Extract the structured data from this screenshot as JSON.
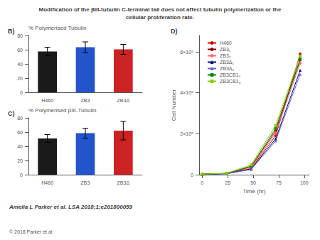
{
  "title": "Modification of the βIII-tubulin C-terminal tail does not affect tubulin polymerization or the\ncellular proliferation rate.",
  "annotations": [
    "Amelia L Parker et al. LSA 2018;1:e201800059",
    "© 2018 Parker et al."
  ],
  "chart_data": [
    {
      "type": "bar",
      "title": "B)",
      "categories": [
        "H460",
        "ZB3",
        "ZB3Δ"
      ],
      "values": [
        57.5,
        63.5,
        60.5
      ],
      "errors": [
        6.0,
        7.5,
        7.0
      ],
      "colors": [
        "#1a1a1a",
        "#2255CC",
        "#CC2222"
      ],
      "ylabel": "% Polymerised Tubulin",
      "ylim": [
        0,
        80
      ],
      "yticks": [
        0,
        20,
        40,
        60,
        80
      ],
      "grid": false
    },
    {
      "type": "bar",
      "title": "C)",
      "categories": [
        "H460",
        "ZB3",
        "ZB3Δ"
      ],
      "values": [
        51.0,
        58.5,
        62.0
      ],
      "errors": [
        5.5,
        7.0,
        13.0
      ],
      "colors": [
        "#1a1a1a",
        "#2255CC",
        "#CC2222"
      ],
      "ylabel": "% Polymerised βIII-Tubulin",
      "ylim": [
        0,
        80
      ],
      "yticks": [
        0,
        20,
        40,
        60,
        80
      ],
      "grid": false
    },
    {
      "type": "line",
      "title": "D)",
      "x": [
        0,
        24,
        48,
        72,
        96
      ],
      "series": [
        {
          "name": "H460",
          "color": "#CC0000",
          "marker": "circle",
          "values": [
            2000,
            5000,
            30000,
            190000,
            590000
          ]
        },
        {
          "name": "ZB3₁",
          "color": "#8B0000",
          "marker": "circle",
          "values": [
            2000,
            6000,
            38000,
            215000,
            560000
          ]
        },
        {
          "name": "ZB3₂",
          "color": "#FF6666",
          "marker": "circle",
          "values": [
            2000,
            5500,
            32000,
            205000,
            545000
          ]
        },
        {
          "name": "ZB3Δ₁",
          "color": "#000080",
          "marker": "triangle",
          "values": [
            2000,
            5000,
            28000,
            175000,
            510000
          ]
        },
        {
          "name": "ZB3Δ₂",
          "color": "#6666CC",
          "marker": "triangle",
          "values": [
            2000,
            4500,
            25000,
            165000,
            490000
          ]
        },
        {
          "name": "ZB3CB1₂",
          "color": "#008800",
          "marker": "square",
          "values": [
            2000,
            6500,
            42000,
            225000,
            565000
          ]
        },
        {
          "name": "ZB3CB1₃",
          "color": "#88CC00",
          "marker": "square",
          "values": [
            2000,
            7000,
            48000,
            240000,
            580000
          ]
        }
      ],
      "xlabel": "Time (hr)",
      "ylabel": "Cell Number",
      "xlim": [
        -3,
        105
      ],
      "xticks": [
        0,
        25,
        50,
        75,
        100
      ],
      "ylim": [
        0,
        680000
      ],
      "yticks": [
        0,
        {
          "value": 200000,
          "label": "2×10⁵"
        },
        {
          "value": 400000,
          "label": "4×10⁵"
        },
        {
          "value": 600000,
          "label": "6×10⁵"
        }
      ],
      "legend": "upper left",
      "grid": false
    }
  ]
}
